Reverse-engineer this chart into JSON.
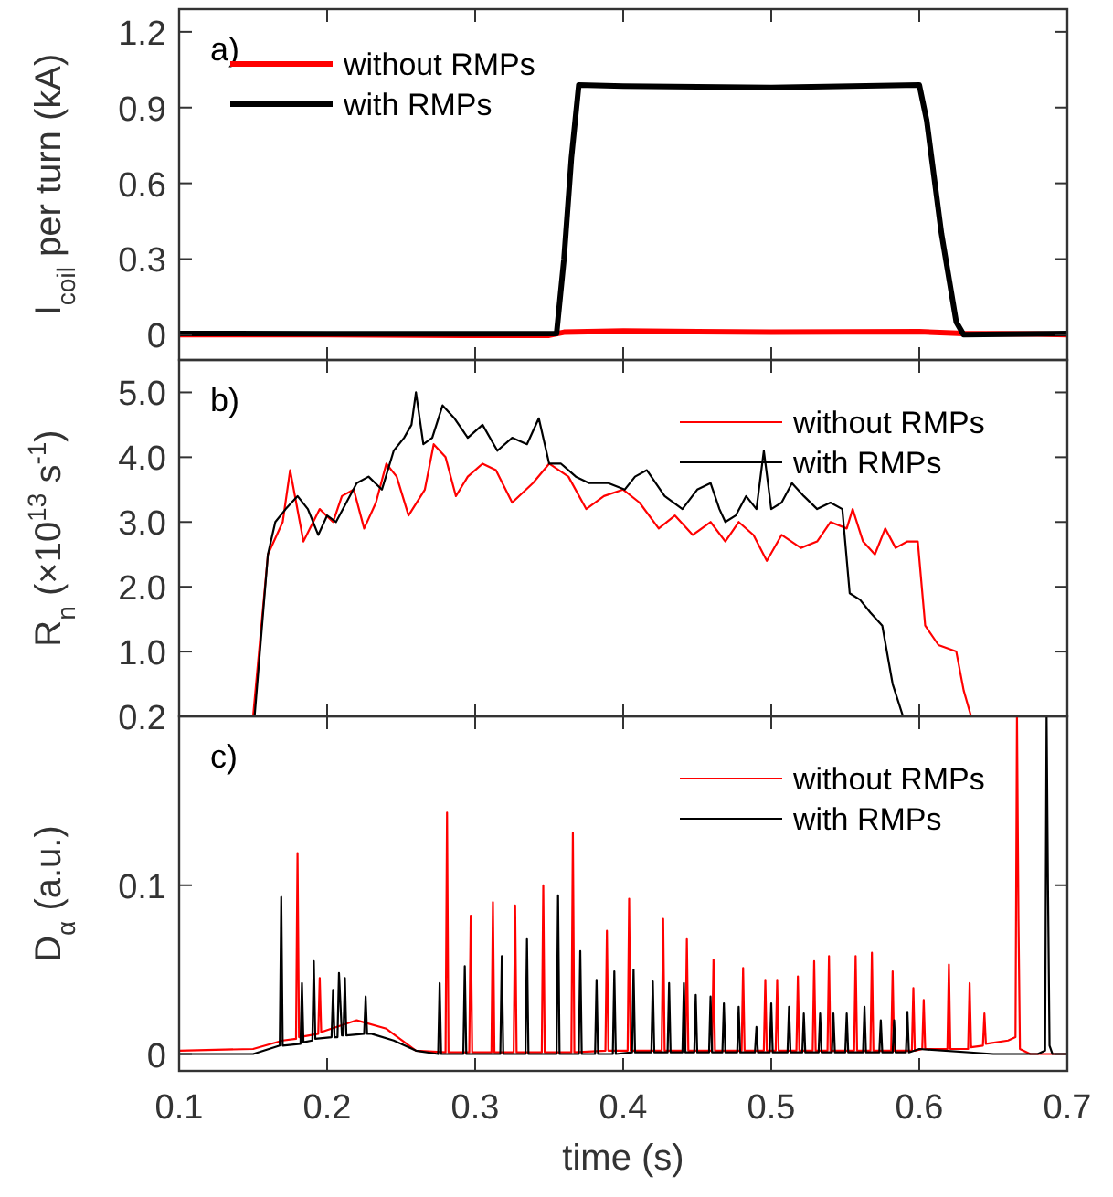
{
  "chart_data": [
    {
      "type": "line",
      "ylabel": "I$_{coil}$ per turn (kA)",
      "annotations": [
        "a)"
      ],
      "legend": "top left",
      "tick_labels": "y",
      "xlim": [
        0.1,
        0.7
      ],
      "xticks": [
        0.1,
        0.2,
        0.3,
        0.4,
        0.5,
        0.6,
        0.7
      ],
      "ylim": [
        -0.1,
        1.29
      ],
      "yticks": [
        {
          "value": 0,
          "label": "0"
        },
        0.3,
        0.6,
        0.9,
        1.2
      ],
      "series": [
        {
          "name": "without RMPs",
          "color": "#ff0000",
          "x": [
            0.1,
            0.2,
            0.3,
            0.35,
            0.36,
            0.4,
            0.5,
            0.6,
            0.63,
            0.68,
            0.7
          ],
          "values": [
            0,
            0,
            -0.002,
            -0.002,
            0.01,
            0.015,
            0.01,
            0.012,
            0.005,
            0.003,
            0
          ]
        },
        {
          "name": "with RMPs",
          "color": "#000000",
          "x": [
            0.1,
            0.2,
            0.3,
            0.355,
            0.36,
            0.365,
            0.37,
            0.4,
            0.5,
            0.6,
            0.605,
            0.615,
            0.625,
            0.63,
            0.7
          ],
          "values": [
            0.005,
            0.004,
            0.004,
            0.005,
            0.3,
            0.7,
            0.99,
            0.985,
            0.98,
            0.99,
            0.85,
            0.4,
            0.05,
            0,
            0.005
          ]
        }
      ]
    },
    {
      "type": "line",
      "ylabel": "R$_{n}$ (×10$^{13}$ s$^{-1}$)",
      "annotations": [
        "b)"
      ],
      "legend": "top right",
      "tick_labels": "y",
      "xlim": [
        0.1,
        0.7
      ],
      "xticks": [
        0.1,
        0.2,
        0.3,
        0.4,
        0.5,
        0.6,
        0.7
      ],
      "ylim": [
        0,
        5.5
      ],
      "yticks": [
        {
          "value": 1,
          "label": "1.0"
        },
        {
          "value": 2,
          "label": "2.0"
        },
        {
          "value": 3,
          "label": "3.0"
        },
        {
          "value": 4,
          "label": "4.0"
        },
        {
          "value": 5,
          "label": "5.0"
        }
      ],
      "series": [
        {
          "name": "without RMPs",
          "color": "#ff0000",
          "x": [
            0.1,
            0.15,
            0.16,
            0.17,
            0.175,
            0.184,
            0.195,
            0.204,
            0.21,
            0.218,
            0.225,
            0.233,
            0.24,
            0.247,
            0.255,
            0.266,
            0.272,
            0.28,
            0.287,
            0.295,
            0.305,
            0.314,
            0.325,
            0.339,
            0.35,
            0.363,
            0.375,
            0.387,
            0.4,
            0.411,
            0.424,
            0.435,
            0.447,
            0.459,
            0.469,
            0.478,
            0.488,
            0.497,
            0.507,
            0.52,
            0.531,
            0.54,
            0.551,
            0.555,
            0.562,
            0.57,
            0.577,
            0.584,
            0.592,
            0.599,
            0.604,
            0.613,
            0.625,
            0.63,
            0.635,
            0.7
          ],
          "values": [
            0,
            0,
            2.5,
            3.0,
            3.8,
            2.7,
            3.2,
            3.0,
            3.4,
            3.5,
            2.9,
            3.3,
            3.9,
            3.7,
            3.1,
            3.5,
            4.2,
            4.0,
            3.4,
            3.7,
            3.9,
            3.8,
            3.3,
            3.6,
            3.9,
            3.7,
            3.2,
            3.4,
            3.5,
            3.3,
            2.9,
            3.1,
            2.8,
            3.0,
            2.7,
            3.0,
            2.8,
            2.4,
            2.8,
            2.6,
            2.7,
            3.0,
            2.9,
            3.2,
            2.7,
            2.5,
            2.9,
            2.6,
            2.7,
            2.7,
            1.4,
            1.1,
            1.0,
            0.4,
            0,
            0
          ]
        },
        {
          "name": "with RMPs",
          "color": "#000000",
          "x": [
            0.1,
            0.151,
            0.16,
            0.165,
            0.172,
            0.18,
            0.187,
            0.194,
            0.2,
            0.206,
            0.213,
            0.22,
            0.228,
            0.237,
            0.245,
            0.252,
            0.257,
            0.26,
            0.265,
            0.271,
            0.278,
            0.286,
            0.295,
            0.305,
            0.315,
            0.325,
            0.335,
            0.343,
            0.35,
            0.358,
            0.368,
            0.377,
            0.39,
            0.401,
            0.408,
            0.416,
            0.428,
            0.44,
            0.45,
            0.459,
            0.465,
            0.469,
            0.476,
            0.483,
            0.49,
            0.495,
            0.5,
            0.507,
            0.514,
            0.522,
            0.531,
            0.54,
            0.548,
            0.553,
            0.56,
            0.567,
            0.575,
            0.582,
            0.589,
            0.7
          ],
          "values": [
            0,
            0,
            2.5,
            3.0,
            3.2,
            3.4,
            3.2,
            2.8,
            3.1,
            3.0,
            3.3,
            3.6,
            3.7,
            3.5,
            4.1,
            4.3,
            4.5,
            5.0,
            4.2,
            4.3,
            4.8,
            4.6,
            4.3,
            4.5,
            4.1,
            4.3,
            4.2,
            4.6,
            3.9,
            3.9,
            3.7,
            3.6,
            3.6,
            3.5,
            3.7,
            3.8,
            3.4,
            3.2,
            3.5,
            3.6,
            3.2,
            3.0,
            3.1,
            3.4,
            3.2,
            4.1,
            3.2,
            3.3,
            3.6,
            3.4,
            3.2,
            3.3,
            3.2,
            1.9,
            1.8,
            1.6,
            1.4,
            0.5,
            0,
            0
          ]
        }
      ]
    },
    {
      "type": "line",
      "xlabel": "time (s)",
      "ylabel": "D$_{α}$ (a.u.)",
      "annotations": [
        "c)"
      ],
      "legend": "top right",
      "xlim": [
        0.1,
        0.7
      ],
      "xticks": [
        0.1,
        0.2,
        0.3,
        0.4,
        0.5,
        0.6,
        0.7
      ],
      "ylim": [
        -0.01,
        0.2
      ],
      "yticks": [
        {
          "value": 0,
          "label": "0"
        },
        0.1,
        0.2
      ],
      "series": [
        {
          "name": "without RMPs",
          "color": "#ff0000",
          "x": [
            0.1,
            0.15,
            0.17,
            0.179,
            0.18,
            0.181,
            0.194,
            0.195,
            0.196,
            0.22,
            0.24,
            0.26,
            0.28,
            0.281,
            0.282,
            0.296,
            0.297,
            0.298,
            0.311,
            0.312,
            0.313,
            0.326,
            0.327,
            0.328,
            0.345,
            0.346,
            0.347,
            0.365,
            0.366,
            0.367,
            0.388,
            0.389,
            0.39,
            0.403,
            0.404,
            0.405,
            0.426,
            0.427,
            0.428,
            0.442,
            0.443,
            0.444,
            0.46,
            0.461,
            0.462,
            0.48,
            0.481,
            0.482,
            0.495,
            0.496,
            0.497,
            0.503,
            0.504,
            0.505,
            0.517,
            0.518,
            0.519,
            0.528,
            0.529,
            0.53,
            0.538,
            0.539,
            0.54,
            0.556,
            0.557,
            0.558,
            0.567,
            0.568,
            0.569,
            0.581,
            0.582,
            0.583,
            0.595,
            0.596,
            0.597,
            0.602,
            0.603,
            0.604,
            0.619,
            0.62,
            0.621,
            0.633,
            0.634,
            0.635,
            0.643,
            0.644,
            0.645,
            0.66,
            0.665,
            0.666,
            0.667,
            0.668,
            0.675,
            0.7
          ],
          "values": [
            0.002,
            0.003,
            0.008,
            0.009,
            0.119,
            0.01,
            0.012,
            0.045,
            0.013,
            0.02,
            0.015,
            0.002,
            0.001,
            0.143,
            0.001,
            0.001,
            0.082,
            0.001,
            0.001,
            0.09,
            0.001,
            0.001,
            0.088,
            0.001,
            0.001,
            0.1,
            0.001,
            0.001,
            0.131,
            0.001,
            0.002,
            0.073,
            0.002,
            0.002,
            0.092,
            0.002,
            0.002,
            0.08,
            0.002,
            0.002,
            0.068,
            0.002,
            0.002,
            0.056,
            0.002,
            0.002,
            0.051,
            0.002,
            0.002,
            0.044,
            0.002,
            0.002,
            0.044,
            0.002,
            0.002,
            0.046,
            0.002,
            0.002,
            0.055,
            0.002,
            0.002,
            0.058,
            0.002,
            0.002,
            0.058,
            0.002,
            0.002,
            0.06,
            0.002,
            0.002,
            0.049,
            0.002,
            0.002,
            0.039,
            0.002,
            0.003,
            0.032,
            0.003,
            0.003,
            0.053,
            0.003,
            0.003,
            0.042,
            0.004,
            0.005,
            0.024,
            0.006,
            0.008,
            0.01,
            0.2,
            0.08,
            0.003,
            0,
            0
          ]
        },
        {
          "name": "with RMPs",
          "color": "#000000",
          "x": [
            0.1,
            0.15,
            0.168,
            0.169,
            0.17,
            0.182,
            0.183,
            0.184,
            0.19,
            0.191,
            0.192,
            0.203,
            0.204,
            0.205,
            0.207,
            0.208,
            0.21,
            0.211,
            0.212,
            0.213,
            0.225,
            0.226,
            0.227,
            0.23,
            0.245,
            0.26,
            0.275,
            0.276,
            0.277,
            0.292,
            0.293,
            0.294,
            0.317,
            0.318,
            0.319,
            0.334,
            0.335,
            0.336,
            0.355,
            0.356,
            0.357,
            0.37,
            0.371,
            0.372,
            0.381,
            0.382,
            0.383,
            0.393,
            0.394,
            0.395,
            0.406,
            0.407,
            0.408,
            0.419,
            0.42,
            0.421,
            0.43,
            0.431,
            0.432,
            0.44,
            0.441,
            0.442,
            0.448,
            0.449,
            0.45,
            0.458,
            0.459,
            0.46,
            0.467,
            0.468,
            0.469,
            0.477,
            0.478,
            0.479,
            0.489,
            0.49,
            0.491,
            0.499,
            0.5,
            0.501,
            0.511,
            0.512,
            0.513,
            0.521,
            0.522,
            0.523,
            0.532,
            0.533,
            0.534,
            0.541,
            0.542,
            0.543,
            0.55,
            0.551,
            0.552,
            0.562,
            0.563,
            0.564,
            0.573,
            0.574,
            0.575,
            0.582,
            0.583,
            0.584,
            0.591,
            0.592,
            0.593,
            0.6,
            0.65,
            0.68,
            0.685,
            0.686,
            0.687,
            0.688,
            0.69,
            0.7
          ],
          "values": [
            0,
            0,
            0.005,
            0.093,
            0.005,
            0.006,
            0.042,
            0.007,
            0.008,
            0.055,
            0.009,
            0.01,
            0.038,
            0.01,
            0.01,
            0.048,
            0.011,
            0.011,
            0.045,
            0.011,
            0.012,
            0.034,
            0.012,
            0.012,
            0.008,
            0.002,
            0,
            0.042,
            0,
            0,
            0.052,
            0,
            0,
            0.058,
            0,
            0,
            0.068,
            0,
            0,
            0.094,
            0,
            0,
            0.061,
            0,
            0,
            0.044,
            0,
            0,
            0.049,
            0,
            0.001,
            0.05,
            0.001,
            0.001,
            0.043,
            0.001,
            0.001,
            0.042,
            0.001,
            0.001,
            0.042,
            0.001,
            0.001,
            0.035,
            0.001,
            0.001,
            0.034,
            0.001,
            0.001,
            0.03,
            0.001,
            0.001,
            0.028,
            0.001,
            0.001,
            0.016,
            0.001,
            0.001,
            0.03,
            0.001,
            0.001,
            0.028,
            0.001,
            0.001,
            0.024,
            0.001,
            0.001,
            0.024,
            0.001,
            0.001,
            0.024,
            0.001,
            0.001,
            0.024,
            0.001,
            0.001,
            0.028,
            0.001,
            0.001,
            0.02,
            0.001,
            0.001,
            0.02,
            0.001,
            0.001,
            0.025,
            0.001,
            0.003,
            0,
            0,
            0.002,
            0.2,
            0.093,
            0.005,
            0,
            0
          ]
        }
      ]
    }
  ]
}
